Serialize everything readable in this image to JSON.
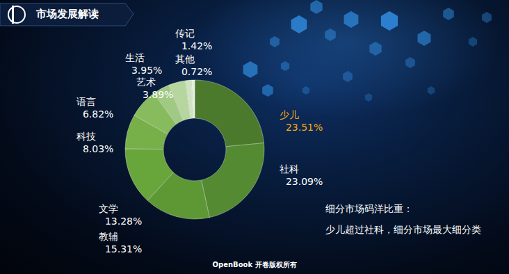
{
  "header": {
    "title": "市场发展解读"
  },
  "chart_data": {
    "type": "pie",
    "categories": [
      "少儿",
      "社科",
      "教辅",
      "文学",
      "科技",
      "语言",
      "生活",
      "艺术",
      "传记",
      "其他"
    ],
    "values": [
      23.51,
      23.09,
      15.31,
      13.28,
      8.03,
      6.82,
      3.95,
      3.89,
      1.42,
      0.72
    ],
    "value_labels": [
      "23.51%",
      "23.09%",
      "15.31%",
      "13.28%",
      "8.03%",
      "6.82%",
      "3.95%",
      "3.89%",
      "1.42%",
      "0.72%"
    ],
    "colors": [
      "#4b7a2d",
      "#548a31",
      "#5e9835",
      "#68a63c",
      "#77b048",
      "#88bb5d",
      "#a0c983",
      "#b6d59f",
      "#cfe3c0",
      "#e6f0dd"
    ],
    "data_labels": true,
    "annotations": [
      "细分市场码洋比重：",
      "少儿超过社科，细分市场最大细分类"
    ]
  },
  "footer": "OpenBook 开卷版权所有"
}
